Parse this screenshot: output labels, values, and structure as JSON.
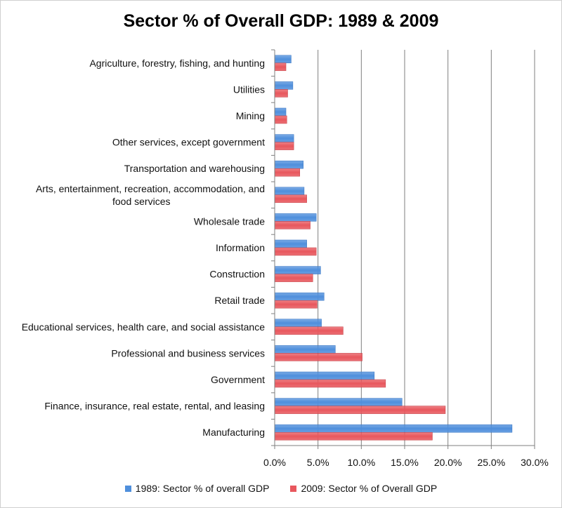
{
  "chart_data": {
    "type": "bar",
    "orientation": "horizontal",
    "title": "Sector % of Overall GDP: 1989 & 2009",
    "categories": [
      [
        "Agriculture, forestry, fishing, and hunting"
      ],
      [
        "Utilities"
      ],
      [
        "Mining"
      ],
      [
        "Other services, except government"
      ],
      [
        "Transportation and warehousing"
      ],
      [
        "Arts, entertainment, recreation, accommodation, and",
        "food services"
      ],
      [
        "Wholesale trade"
      ],
      [
        "Information"
      ],
      [
        "Construction"
      ],
      [
        "Retail trade"
      ],
      [
        "Educational services, health care, and social assistance"
      ],
      [
        "Professional and business services"
      ],
      [
        "Government"
      ],
      [
        "Finance, insurance, real estate, rental, and leasing"
      ],
      [
        "Manufacturing"
      ]
    ],
    "series": [
      {
        "name": "1989: Sector % of overall GDP",
        "color": "#4f8fdc",
        "values": [
          1.9,
          2.1,
          1.3,
          2.2,
          3.3,
          3.4,
          4.8,
          3.7,
          5.3,
          5.7,
          5.4,
          7.0,
          11.5,
          14.7,
          27.4
        ]
      },
      {
        "name": "2009: Sector % of Overall GDP",
        "color": "#e8575d",
        "values": [
          1.3,
          1.5,
          1.4,
          2.2,
          2.9,
          3.7,
          4.1,
          4.8,
          4.4,
          4.9,
          7.9,
          10.1,
          12.8,
          19.7,
          18.2
        ]
      }
    ],
    "xlim": [
      0,
      30
    ],
    "xticks": [
      "0.0%",
      "5.0%",
      "10.0%",
      "15.0%",
      "20.0%",
      "25.0%",
      "30.0%"
    ],
    "grid": true,
    "legend_position": "bottom"
  }
}
